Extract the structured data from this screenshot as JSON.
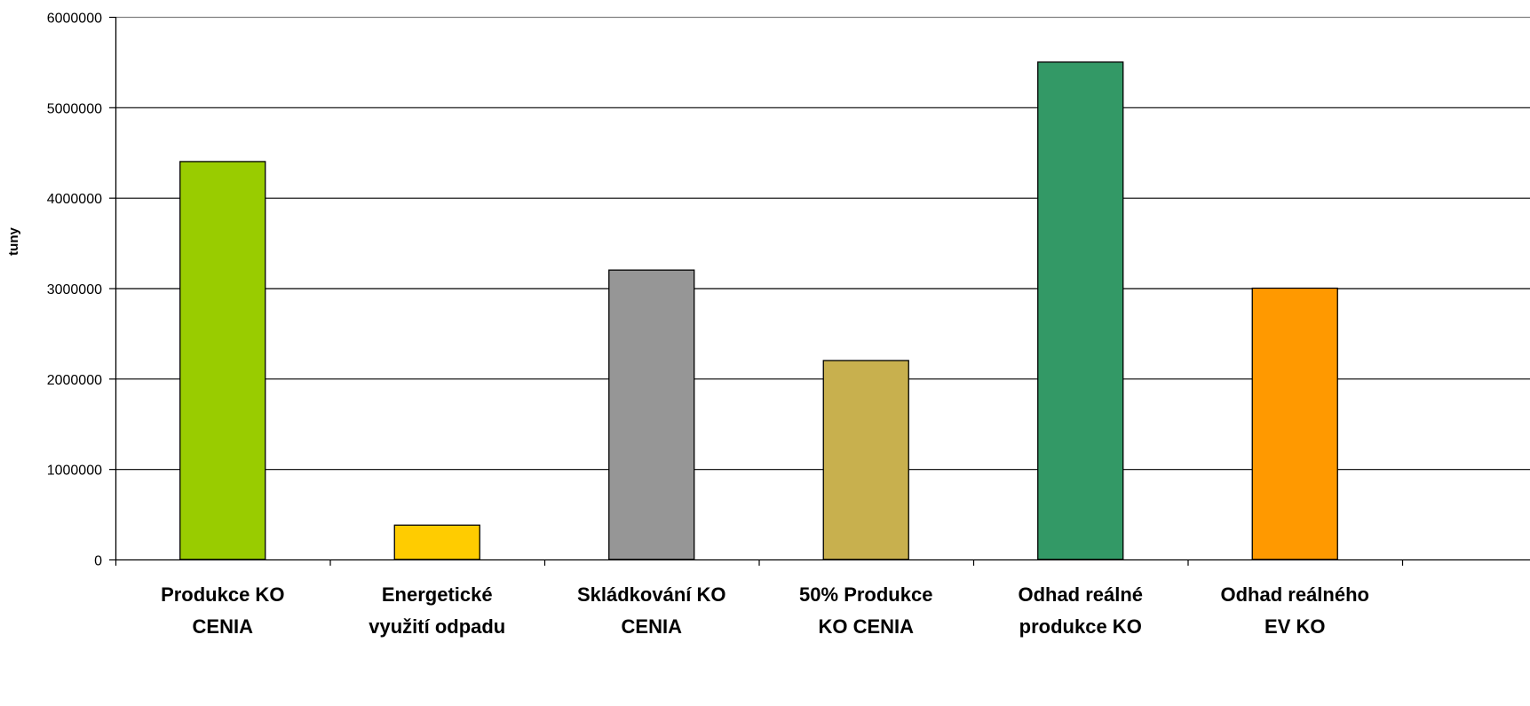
{
  "chart_data": {
    "type": "bar",
    "title": "",
    "xlabel": "",
    "ylabel": "tuny",
    "ylim": [
      0,
      6000000
    ],
    "yticks": [
      0,
      1000000,
      2000000,
      3000000,
      4000000,
      5000000,
      6000000
    ],
    "ytick_labels": [
      "0",
      "1000000",
      "2000000",
      "3000000",
      "4000000",
      "5000000",
      "6000000"
    ],
    "grid": true,
    "legend": "none",
    "categories": [
      [
        "Produkce KO",
        "CENIA"
      ],
      [
        "Energetické",
        "využití odpadu"
      ],
      [
        "Skládkování KO",
        "CENIA"
      ],
      [
        "50% Produkce",
        "KO CENIA"
      ],
      [
        "Odhad reálné",
        "produkce KO"
      ],
      [
        "Odhad reálného",
        "EV KO"
      ]
    ],
    "values": [
      4400000,
      380000,
      3200000,
      2200000,
      5500000,
      3000000
    ],
    "colors": [
      "#99cc00",
      "#ffcc00",
      "#969696",
      "#c8b04e",
      "#339966",
      "#ff9900"
    ]
  }
}
